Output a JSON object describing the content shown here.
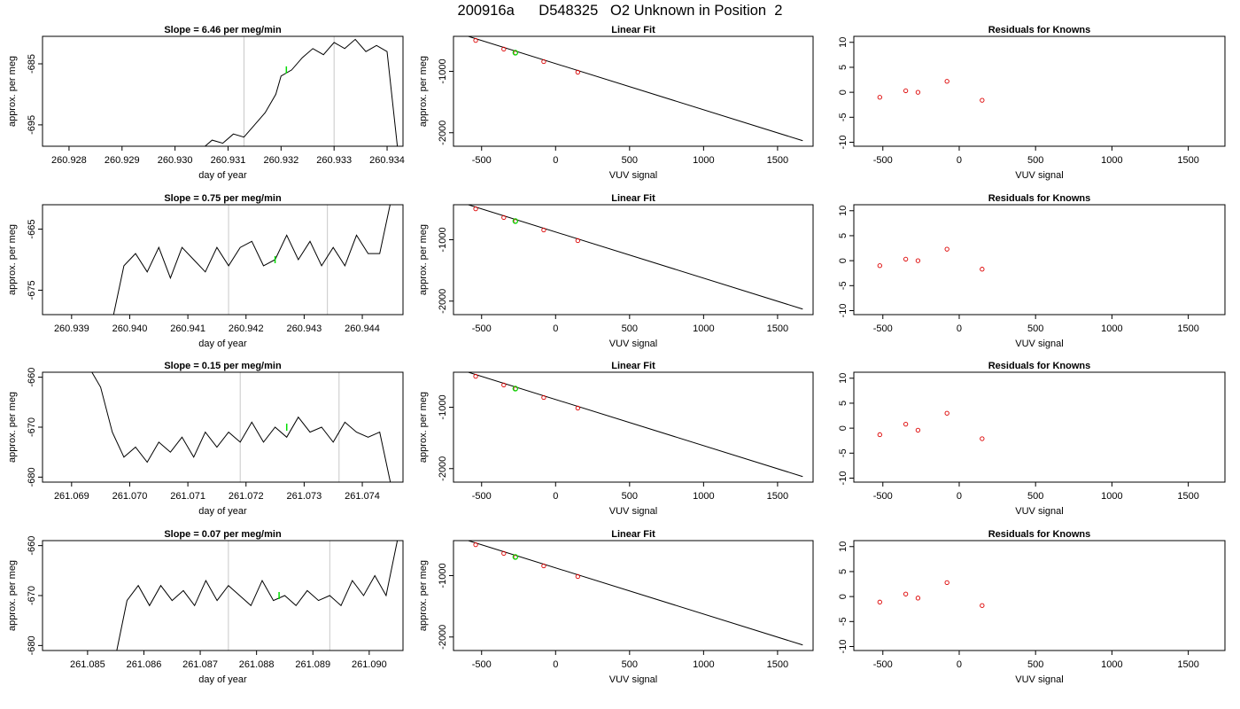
{
  "page_title": "200916a      D548325   O2 Unknown in Position  2",
  "colors": {
    "trace": "#000000",
    "marker_green": "#00dd00",
    "residual_red": "#dd0000",
    "vline_gray": "#c8c8c8",
    "fit_line": "#000000"
  },
  "chart_data": [
    {
      "type": "line",
      "title": "Slope =  6.46  per meg/min",
      "xlabel": "day of year",
      "ylabel": "approx. per meg",
      "xlim": [
        260.9275,
        260.9343
      ],
      "ylim": [
        -698.5,
        -680.5
      ],
      "xticks": [
        "260.928",
        "260.929",
        "260.930",
        "260.931",
        "260.932",
        "260.933",
        "260.934"
      ],
      "yticks": [
        "-685",
        "-695"
      ],
      "vlines": [
        260.9313,
        260.933
      ],
      "highlight": {
        "x": 260.9321,
        "y": -686
      },
      "series": [
        {
          "x": [
            260.9305,
            260.9307,
            260.9309,
            260.9311,
            260.9313,
            260.9315,
            260.9317,
            260.9319,
            260.932,
            260.9322,
            260.9324,
            260.9326,
            260.9328,
            260.933,
            260.9332,
            260.9334,
            260.9336,
            260.9338,
            260.934,
            260.9342
          ],
          "values": [
            -699,
            -697.5,
            -698,
            -696.5,
            -697,
            -695,
            -693,
            -690,
            -687,
            -686,
            -684,
            -682.5,
            -683.5,
            -681.5,
            -682.5,
            -681,
            -683,
            -682,
            -683,
            -699
          ]
        }
      ]
    },
    {
      "type": "scatter",
      "title": "Linear Fit",
      "xlabel": "VUV signal",
      "ylabel": "approx. per meg",
      "xlim": [
        -690,
        1740
      ],
      "ylim": [
        -2220,
        -430
      ],
      "xticks": [
        -500,
        0,
        500,
        1000,
        1500
      ],
      "yticks": [
        -1000,
        -2000
      ],
      "fit_line": {
        "x": [
          -590,
          1670
        ],
        "y": [
          -430,
          -2130
        ]
      },
      "points": {
        "x": [
          -540,
          -350,
          -270,
          -80,
          150
        ],
        "y": [
          -496,
          -638,
          -698,
          -841,
          -1014
        ]
      },
      "highlight": {
        "x": -272,
        "y": -696
      }
    },
    {
      "type": "scatter",
      "title": "Residuals for Knowns",
      "xlabel": "VUV signal",
      "ylabel": "",
      "xlim": [
        -690,
        1740
      ],
      "ylim": [
        -10.8,
        11.2
      ],
      "xticks": [
        -500,
        0,
        500,
        1000,
        1500
      ],
      "yticks": [
        -10,
        -5,
        0,
        5,
        10
      ],
      "points": {
        "x": [
          -520,
          -350,
          -270,
          -80,
          150
        ],
        "y": [
          -1.0,
          0.3,
          0.0,
          2.2,
          -1.6
        ]
      }
    },
    {
      "type": "line",
      "title": "Slope =  0.75  per meg/min",
      "xlabel": "day of year",
      "ylabel": "approx. per meg",
      "xlim": [
        260.9385,
        260.9447
      ],
      "ylim": [
        -679,
        -661
      ],
      "xticks": [
        "260.939",
        "260.940",
        "260.941",
        "260.942",
        "260.943",
        "260.944"
      ],
      "yticks": [
        "-665",
        "-675"
      ],
      "vlines": [
        260.9417,
        260.9434
      ],
      "highlight": {
        "x": 260.9425,
        "y": -670
      },
      "series": [
        {
          "x": [
            260.9397,
            260.9399,
            260.9401,
            260.9403,
            260.9405,
            260.9407,
            260.9409,
            260.9411,
            260.9413,
            260.9415,
            260.9417,
            260.9419,
            260.9421,
            260.9423,
            260.9425,
            260.9427,
            260.9429,
            260.9431,
            260.9433,
            260.9435,
            260.9437,
            260.9439,
            260.9441,
            260.9443,
            260.9445
          ],
          "values": [
            -680,
            -671,
            -669,
            -672,
            -668,
            -673,
            -668,
            -670,
            -672,
            -668,
            -671,
            -668,
            -667,
            -671,
            -670,
            -666,
            -670,
            -667,
            -671,
            -668,
            -671,
            -666,
            -669,
            -669,
            -660
          ]
        }
      ]
    },
    {
      "type": "scatter",
      "title": "Linear Fit",
      "xlabel": "VUV signal",
      "ylabel": "approx. per meg",
      "xlim": [
        -690,
        1740
      ],
      "ylim": [
        -2220,
        -430
      ],
      "xticks": [
        -500,
        0,
        500,
        1000,
        1500
      ],
      "yticks": [
        -1000,
        -2000
      ],
      "fit_line": {
        "x": [
          -590,
          1670
        ],
        "y": [
          -430,
          -2130
        ]
      },
      "points": {
        "x": [
          -540,
          -350,
          -270,
          -80,
          150
        ],
        "y": [
          -496,
          -638,
          -698,
          -841,
          -1014
        ]
      },
      "highlight": {
        "x": -272,
        "y": -696
      }
    },
    {
      "type": "scatter",
      "title": "Residuals for Knowns",
      "xlabel": "VUV signal",
      "ylabel": "",
      "xlim": [
        -690,
        1740
      ],
      "ylim": [
        -10.8,
        11.2
      ],
      "xticks": [
        -500,
        0,
        500,
        1000,
        1500
      ],
      "yticks": [
        -10,
        -5,
        0,
        5,
        10
      ],
      "points": {
        "x": [
          -520,
          -350,
          -270,
          -80,
          150
        ],
        "y": [
          -1.0,
          0.3,
          0.0,
          2.3,
          -1.7
        ]
      }
    },
    {
      "type": "line",
      "title": "Slope =  0.15  per meg/min",
      "xlabel": "day of year",
      "ylabel": "approx. per meg",
      "xlim": [
        261.0685,
        261.0747
      ],
      "ylim": [
        -681,
        -659
      ],
      "xticks": [
        "261.069",
        "261.070",
        "261.071",
        "261.072",
        "261.073",
        "261.074"
      ],
      "yticks": [
        "-660",
        "-670",
        "-680"
      ],
      "vlines": [
        261.0719,
        261.0736
      ],
      "highlight": {
        "x": 261.0727,
        "y": -670
      },
      "series": [
        {
          "x": [
            261.0693,
            261.0695,
            261.0697,
            261.0699,
            261.0701,
            261.0703,
            261.0705,
            261.0707,
            261.0709,
            261.0711,
            261.0713,
            261.0715,
            261.0717,
            261.0719,
            261.0721,
            261.0723,
            261.0725,
            261.0727,
            261.0729,
            261.0731,
            261.0733,
            261.0735,
            261.0737,
            261.0739,
            261.0741,
            261.0743,
            261.0745
          ],
          "values": [
            -658,
            -662,
            -671,
            -676,
            -674,
            -677,
            -673,
            -675,
            -672,
            -676,
            -671,
            -674,
            -671,
            -673,
            -669,
            -673,
            -670,
            -672,
            -668,
            -671,
            -670,
            -673,
            -669,
            -671,
            -672,
            -671,
            -682
          ]
        }
      ]
    },
    {
      "type": "scatter",
      "title": "Linear Fit",
      "xlabel": "VUV signal",
      "ylabel": "approx. per meg",
      "xlim": [
        -690,
        1740
      ],
      "ylim": [
        -2220,
        -430
      ],
      "xticks": [
        -500,
        0,
        500,
        1000,
        1500
      ],
      "yticks": [
        -1000,
        -2000
      ],
      "fit_line": {
        "x": [
          -590,
          1670
        ],
        "y": [
          -430,
          -2130
        ]
      },
      "points": {
        "x": [
          -540,
          -350,
          -270,
          -80,
          150
        ],
        "y": [
          -496,
          -638,
          -698,
          -841,
          -1014
        ]
      },
      "highlight": {
        "x": -272,
        "y": -696
      }
    },
    {
      "type": "scatter",
      "title": "Residuals for Knowns",
      "xlabel": "VUV signal",
      "ylabel": "",
      "xlim": [
        -690,
        1740
      ],
      "ylim": [
        -10.8,
        11.2
      ],
      "xticks": [
        -500,
        0,
        500,
        1000,
        1500
      ],
      "yticks": [
        -10,
        -5,
        0,
        5,
        10
      ],
      "points": {
        "x": [
          -520,
          -350,
          -270,
          -80,
          150
        ],
        "y": [
          -1.3,
          0.8,
          -0.4,
          3.0,
          -2.1
        ]
      }
    },
    {
      "type": "line",
      "title": "Slope =  0.07  per meg/min",
      "xlabel": "day of year",
      "ylabel": "approx. per meg",
      "xlim": [
        261.0842,
        261.0906
      ],
      "ylim": [
        -681,
        -659
      ],
      "xticks": [
        "261.085",
        "261.086",
        "261.087",
        "261.088",
        "261.089",
        "261.090"
      ],
      "yticks": [
        "-660",
        "-670",
        "-680"
      ],
      "vlines": [
        261.0875,
        261.0893
      ],
      "highlight": {
        "x": 261.0884,
        "y": -670
      },
      "series": [
        {
          "x": [
            261.0855,
            261.0857,
            261.0859,
            261.0861,
            261.0863,
            261.0865,
            261.0867,
            261.0869,
            261.0871,
            261.0873,
            261.0875,
            261.0877,
            261.0879,
            261.0881,
            261.0883,
            261.0885,
            261.0887,
            261.0889,
            261.0891,
            261.0893,
            261.0895,
            261.0897,
            261.0899,
            261.0901,
            261.0903,
            261.0905
          ],
          "values": [
            -682,
            -671,
            -668,
            -672,
            -668,
            -671,
            -669,
            -672,
            -667,
            -671,
            -668,
            -670,
            -672,
            -667,
            -671,
            -670,
            -672,
            -669,
            -671,
            -670,
            -672,
            -667,
            -670,
            -666,
            -670,
            -659
          ]
        }
      ]
    },
    {
      "type": "scatter",
      "title": "Linear Fit",
      "xlabel": "VUV signal",
      "ylabel": "approx. per meg",
      "xlim": [
        -690,
        1740
      ],
      "ylim": [
        -2220,
        -430
      ],
      "xticks": [
        -500,
        0,
        500,
        1000,
        1500
      ],
      "yticks": [
        -1000,
        -2000
      ],
      "fit_line": {
        "x": [
          -590,
          1670
        ],
        "y": [
          -430,
          -2130
        ]
      },
      "points": {
        "x": [
          -540,
          -350,
          -270,
          -80,
          150
        ],
        "y": [
          -496,
          -638,
          -698,
          -841,
          -1014
        ]
      },
      "highlight": {
        "x": -272,
        "y": -696
      }
    },
    {
      "type": "scatter",
      "title": "Residuals for Knowns",
      "xlabel": "VUV signal",
      "ylabel": "",
      "xlim": [
        -690,
        1740
      ],
      "ylim": [
        -10.8,
        11.2
      ],
      "xticks": [
        -500,
        0,
        500,
        1000,
        1500
      ],
      "yticks": [
        -10,
        -5,
        0,
        5,
        10
      ],
      "points": {
        "x": [
          -520,
          -350,
          -270,
          -80,
          150
        ],
        "y": [
          -1.1,
          0.5,
          -0.3,
          2.8,
          -1.8
        ]
      }
    }
  ]
}
